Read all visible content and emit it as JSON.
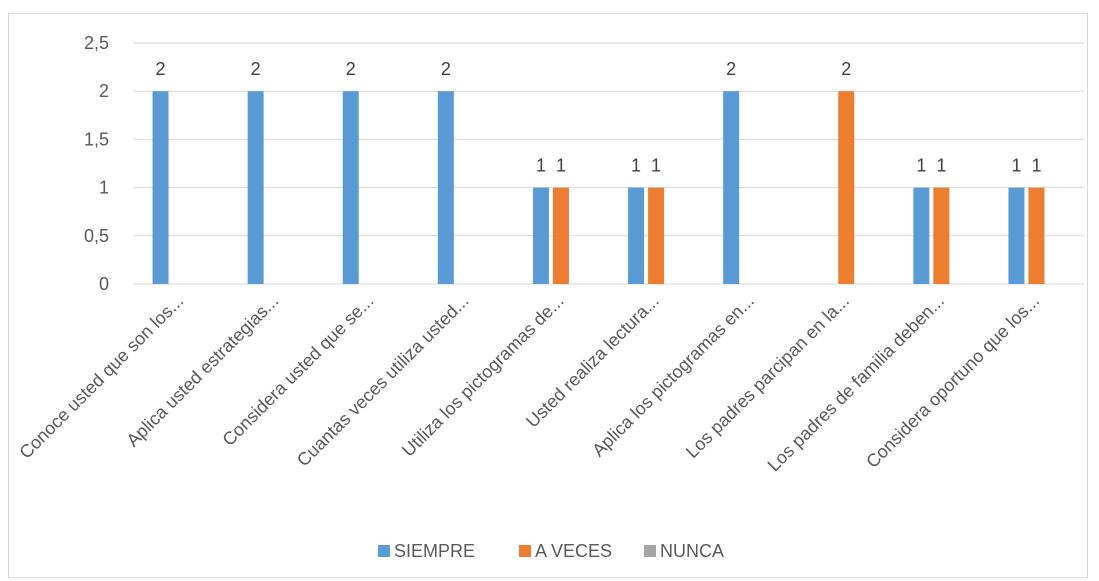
{
  "chart_data": {
    "type": "bar",
    "title": "",
    "xlabel": "",
    "ylabel": "",
    "ylim": [
      0,
      2.5
    ],
    "yticks": [
      "0",
      "0,5",
      "1",
      "1,5",
      "2",
      "2,5"
    ],
    "categories": [
      "Conoce usted que son los...",
      "Aplica usted estrategias...",
      "Considera usted que se...",
      "Cuantas veces utiliza usted...",
      "Utiliza los pictogramas de...",
      "Usted realiza lectura...",
      "Aplica los pictogramas en...",
      "Los padres parcipan en la...",
      "Los padres de familia deben...",
      "Considera oportuno que los..."
    ],
    "series": [
      {
        "name": "SIEMPRE",
        "color": "#5b9bd5",
        "values": [
          2,
          2,
          2,
          2,
          1,
          1,
          2,
          0,
          1,
          1
        ],
        "labels": [
          "2",
          "2",
          "2",
          "2",
          "1",
          "1",
          "2",
          "",
          "1",
          "1"
        ]
      },
      {
        "name": "A VECES",
        "color": "#ed7d31",
        "values": [
          0,
          0,
          0,
          0,
          1,
          1,
          0,
          2,
          1,
          1
        ],
        "labels": [
          "",
          "",
          "",
          "",
          "1",
          "1",
          "",
          "2",
          "1",
          "1"
        ]
      },
      {
        "name": "NUNCA",
        "color": "#a5a5a5",
        "values": [
          0,
          0,
          0,
          0,
          0,
          0,
          0,
          0,
          0,
          0
        ],
        "labels": [
          "",
          "",
          "",
          "",
          "",
          "",
          "",
          "",
          "",
          ""
        ]
      }
    ],
    "grid": true,
    "legend_position": "bottom"
  }
}
